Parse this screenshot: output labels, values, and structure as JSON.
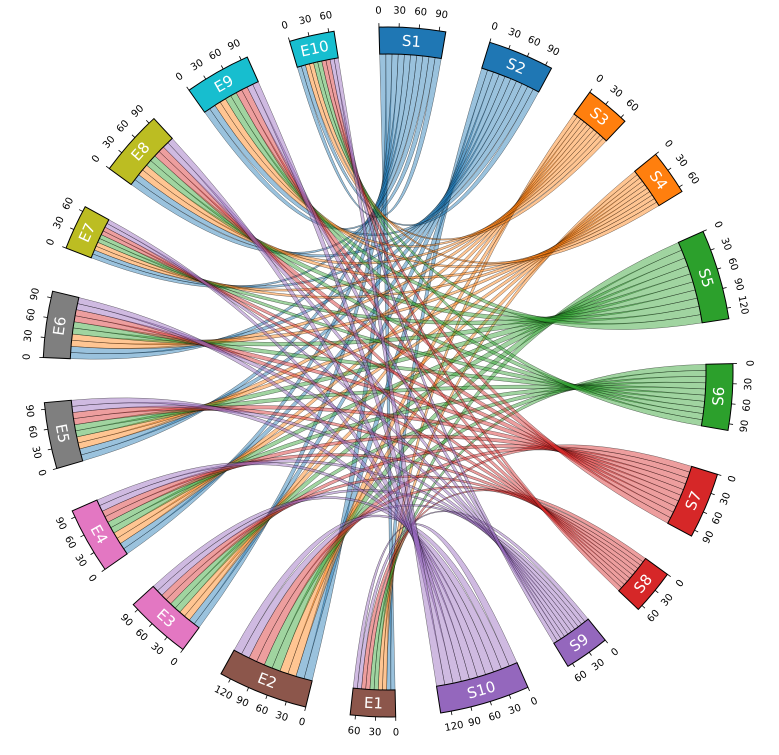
{
  "chart_data": {
    "type": "chord",
    "segments": [
      {
        "name": "S1",
        "size": 100,
        "color": "#1f77b4",
        "ticks": [
          0,
          30,
          60,
          90
        ]
      },
      {
        "name": "S2",
        "size": 100,
        "color": "#1f77b4",
        "ticks": [
          0,
          30,
          60,
          90
        ]
      },
      {
        "name": "S3",
        "size": 68,
        "color": "#ff7f0e",
        "ticks": [
          0,
          30,
          60
        ]
      },
      {
        "name": "S4",
        "size": 68,
        "color": "#ff7f0e",
        "ticks": [
          0,
          30,
          60
        ]
      },
      {
        "name": "S5",
        "size": 136,
        "color": "#2ca02c",
        "ticks": [
          0,
          30,
          60,
          90,
          120
        ]
      },
      {
        "name": "S6",
        "size": 100,
        "color": "#2ca02c",
        "ticks": [
          0,
          30,
          60,
          90
        ]
      },
      {
        "name": "S7",
        "size": 100,
        "color": "#d62728",
        "ticks": [
          0,
          30,
          60,
          90
        ]
      },
      {
        "name": "S8",
        "size": 68,
        "color": "#d62728",
        "ticks": [
          0,
          30,
          60
        ]
      },
      {
        "name": "S9",
        "size": 68,
        "color": "#9467bd",
        "ticks": [
          0,
          30,
          60
        ]
      },
      {
        "name": "S10",
        "size": 136,
        "color": "#9467bd",
        "ticks": [
          0,
          30,
          60,
          90,
          120
        ]
      },
      {
        "name": "E1",
        "size": 68,
        "color": "#8c564b",
        "ticks": [
          0,
          30,
          60
        ]
      },
      {
        "name": "E2",
        "size": 136,
        "color": "#8c564b",
        "ticks": [
          0,
          30,
          60,
          90,
          120
        ]
      },
      {
        "name": "E3",
        "size": 100,
        "color": "#e377c2",
        "ticks": [
          0,
          30,
          60,
          90
        ]
      },
      {
        "name": "E4",
        "size": 100,
        "color": "#e377c2",
        "ticks": [
          0,
          30,
          60,
          90
        ]
      },
      {
        "name": "E5",
        "size": 100,
        "color": "#7f7f7f",
        "ticks": [
          0,
          30,
          60,
          90
        ]
      },
      {
        "name": "E6",
        "size": 100,
        "color": "#7f7f7f",
        "ticks": [
          0,
          30,
          60,
          90
        ]
      },
      {
        "name": "E7",
        "size": 68,
        "color": "#bcbd22",
        "ticks": [
          0,
          30,
          60
        ]
      },
      {
        "name": "E8",
        "size": 100,
        "color": "#bcbd22",
        "ticks": [
          0,
          30,
          60,
          90
        ]
      },
      {
        "name": "E9",
        "size": 100,
        "color": "#17becf",
        "ticks": [
          0,
          30,
          60,
          90
        ]
      },
      {
        "name": "E10",
        "size": 68,
        "color": "#17becf",
        "ticks": [
          0,
          30,
          60
        ]
      }
    ],
    "links_per_pair": 1,
    "note_colors": "link color follows source S-segment"
  }
}
